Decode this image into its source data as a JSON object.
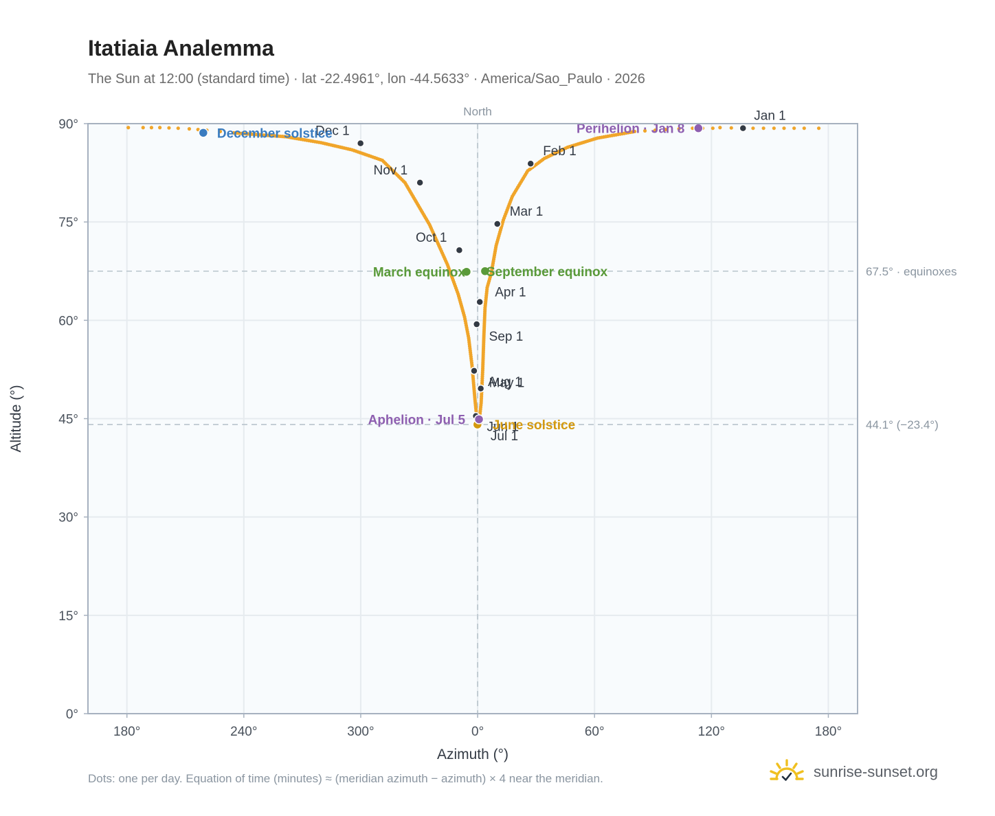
{
  "title": "Itatiaia Analemma",
  "subtitle": "The Sun at 12:00 (standard time) · lat -22.4961°, lon -44.5633° · America/Sao_Paulo · 2026",
  "footnote": "Dots: one per day. Equation of time (minutes) ≈ (meridian azimuth − azimuth) × 4 near the meridian.",
  "brand": {
    "name": "sunrise-sunset.org",
    "icon": "sun-logo-icon",
    "color": "#f0c020"
  },
  "chart_data": {
    "type": "scatter",
    "xlabel": "Azimuth (°)",
    "ylabel": "Altitude (°)",
    "xlim": [
      174.4,
      193.6
    ],
    "ylim": [
      0,
      90
    ],
    "x_axis_note": "azimuth axis runs 180° → 240° → 300° → 0° → 60° → 120° → 180°, centred on North (0°)",
    "x_ticks": [
      {
        "value": 180,
        "label": "180°"
      },
      {
        "value": 240,
        "label": "240°"
      },
      {
        "value": 300,
        "label": "300°"
      },
      {
        "value": 360,
        "label": "0°"
      },
      {
        "value": 420,
        "label": "60°"
      },
      {
        "value": 480,
        "label": "120°"
      },
      {
        "value": 540,
        "label": "180°"
      }
    ],
    "y_ticks": [
      {
        "value": 0,
        "label": "0°"
      },
      {
        "value": 15,
        "label": "15°"
      },
      {
        "value": 30,
        "label": "30°"
      },
      {
        "value": 45,
        "label": "45°"
      },
      {
        "value": 60,
        "label": "60°"
      },
      {
        "value": 75,
        "label": "75°"
      },
      {
        "value": 90,
        "label": "90°"
      }
    ],
    "grid": true,
    "north_marker": {
      "azimuth": 360,
      "label": "North"
    },
    "reference_lines": [
      {
        "altitude": 67.5,
        "label": "67.5° · equinoxes"
      },
      {
        "altitude": 44.1,
        "label": "44.1° (−23.4°)"
      }
    ],
    "colors": {
      "curve": "#f0a52a",
      "month_marker": "#333a44",
      "december_solstice": "#3a7cc0",
      "june_solstice": "#d4990f",
      "equinox": "#5a9a3a",
      "apsis": "#8e5fb0",
      "grid": "#e6ebef",
      "plot_background": "#f8fbfd",
      "frame": "#a6b1bf",
      "reference_line": "#b8c4cc"
    },
    "series": [
      {
        "name": "Daily sun position",
        "points": [
          [
            180.7,
            89.4
          ],
          [
            188.3,
            89.4
          ],
          [
            196.9,
            89.4
          ],
          [
            206.3,
            89.3
          ],
          [
            212.0,
            89.2
          ],
          [
            221.0,
            89.0
          ],
          [
            234.8,
            88.6
          ],
          [
            248.2,
            88.3
          ],
          [
            261.8,
            88.0
          ],
          [
            279.6,
            87.1
          ],
          [
            295.6,
            86.0
          ],
          [
            311.1,
            84.4
          ],
          [
            322.7,
            81.0
          ],
          [
            335.3,
            74.6
          ],
          [
            344.5,
            68.5
          ],
          [
            350.0,
            64.0
          ],
          [
            353.3,
            60.5
          ],
          [
            355.4,
            57.3
          ],
          [
            357.2,
            52.9
          ],
          [
            358.6,
            48.0
          ],
          [
            359.4,
            45.6
          ],
          [
            360.1,
            44.2
          ],
          [
            360.9,
            44.9
          ],
          [
            361.8,
            47.4
          ],
          [
            362.6,
            52.4
          ],
          [
            363.2,
            57.6
          ],
          [
            363.8,
            61.9
          ],
          [
            364.9,
            65.0
          ],
          [
            367.0,
            67.2
          ],
          [
            369.5,
            71.4
          ],
          [
            373.2,
            75.3
          ],
          [
            377.8,
            78.9
          ],
          [
            385.7,
            82.8
          ],
          [
            394.3,
            84.7
          ],
          [
            406.2,
            86.4
          ],
          [
            421.5,
            87.8
          ],
          [
            440.6,
            88.8
          ],
          [
            456.4,
            89.1
          ],
          [
            470.3,
            89.3
          ],
          [
            480.7,
            89.3
          ],
          [
            484.4,
            89.4
          ],
          [
            496.0,
            89.3
          ],
          [
            512.1,
            89.3
          ],
          [
            527.6,
            89.3
          ],
          [
            535.1,
            89.3
          ]
        ]
      }
    ],
    "month_markers": [
      {
        "label": "Jan 1",
        "azimuth": 496.2,
        "altitude": 89.3
      },
      {
        "label": "Feb 1",
        "azimuth": 387.2,
        "altitude": 83.9
      },
      {
        "label": "Mar 1",
        "azimuth": 370.1,
        "altitude": 74.7
      },
      {
        "label": "Apr 1",
        "azimuth": 361.1,
        "altitude": 62.8
      },
      {
        "label": "May 1",
        "azimuth": 361.6,
        "altitude": 49.6
      },
      {
        "label": "Jun 1",
        "azimuth": 359.1,
        "altitude": 45.4
      },
      {
        "label": "Jul 1",
        "azimuth": 361.0,
        "altitude": 44.2
      },
      {
        "label": "Aug 1",
        "azimuth": 358.2,
        "altitude": 52.3
      },
      {
        "label": "Sep 1",
        "azimuth": 359.5,
        "altitude": 59.4
      },
      {
        "label": "Oct 1",
        "azimuth": 350.6,
        "altitude": 70.7
      },
      {
        "label": "Nov 1",
        "azimuth": 330.4,
        "altitude": 81.0
      },
      {
        "label": "Dec 1",
        "azimuth": 299.9,
        "altitude": 87.0
      }
    ],
    "events": [
      {
        "label": "December solstice",
        "azimuth": 219.2,
        "altitude": 88.6,
        "color_key": "december_solstice"
      },
      {
        "label": "Perihelion · Jan 8",
        "azimuth": 473.3,
        "altitude": 89.3,
        "color_key": "apsis"
      },
      {
        "label": "March equinox",
        "azimuth": 354.3,
        "altitude": 67.4,
        "color_key": "equinox"
      },
      {
        "label": "September equinox",
        "azimuth": 363.8,
        "altitude": 67.5,
        "color_key": "equinox"
      },
      {
        "label": "June solstice",
        "azimuth": 359.9,
        "altitude": 44.1,
        "color_key": "june_solstice"
      },
      {
        "label": "Aphelion · Jul 5",
        "azimuth": 360.7,
        "altitude": 44.9,
        "color_key": "apsis"
      }
    ]
  }
}
